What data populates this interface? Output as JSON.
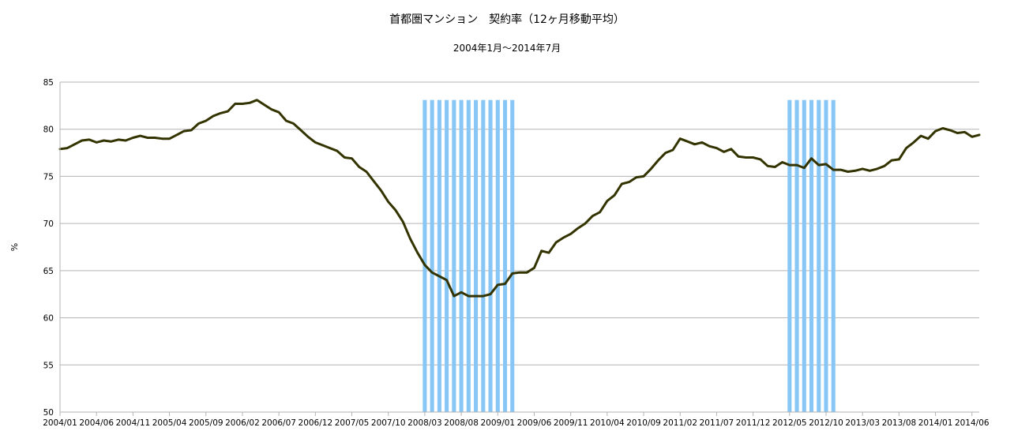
{
  "chart_data": {
    "type": "line",
    "title": "首都圏マンション　契約率（12ヶ月移動平均）",
    "subtitle": "2004年1月～2014年7月",
    "xlabel": "",
    "ylabel": "%",
    "ylim": [
      50,
      85
    ],
    "yticks": [
      50,
      55,
      60,
      65,
      70,
      75,
      80,
      85
    ],
    "grid": true,
    "legend": "none",
    "line_color": "#333300",
    "band_color": "#87c6f5",
    "x_tick_labels": [
      "2004/01",
      "2004/06",
      "2004/11",
      "2005/04",
      "2005/09",
      "2006/02",
      "2006/07",
      "2006/12",
      "2007/05",
      "2007/10",
      "2008/03",
      "2008/08",
      "2009/01",
      "2009/06",
      "2009/11",
      "2010/04",
      "2010/09",
      "2011/02",
      "2011/07",
      "2011/12",
      "2012/05",
      "2012/10",
      "2013/03",
      "2013/08",
      "2014/01",
      "2014/06"
    ],
    "shaded_periods": [
      {
        "start": "2008/03",
        "end": "2009/03",
        "value": 83.1
      },
      {
        "start": "2012/05",
        "end": "2012/11",
        "value": 83.1
      }
    ],
    "series": [
      {
        "start": "2004/01",
        "values": [
          77.9,
          78.0,
          78.4,
          78.8,
          78.9,
          78.6,
          78.8,
          78.7,
          78.9,
          78.8,
          79.1,
          79.3,
          79.1,
          79.1,
          79.0,
          79.0,
          79.4,
          79.8,
          79.9,
          80.6,
          80.9,
          81.4,
          81.7,
          81.9,
          82.7,
          82.7,
          82.8,
          83.1,
          82.6,
          82.1,
          81.8,
          80.9,
          80.6,
          79.9,
          79.2,
          78.6,
          78.3,
          78.0,
          77.7,
          77.0,
          76.9,
          76.0,
          75.5,
          74.5,
          73.5,
          72.3,
          71.4,
          70.2,
          68.4,
          66.9,
          65.6,
          64.8,
          64.4,
          64.0,
          62.3,
          62.7,
          62.3,
          62.3,
          62.3,
          62.5,
          63.5,
          63.6,
          64.7,
          64.8,
          64.8,
          65.3,
          67.1,
          66.9,
          68.0,
          68.5,
          68.9,
          69.5,
          70.0,
          70.8,
          71.2,
          72.4,
          73.0,
          74.2,
          74.4,
          74.9,
          75.0,
          75.8,
          76.7,
          77.5,
          77.8,
          79.0,
          78.7,
          78.4,
          78.6,
          78.2,
          78.0,
          77.6,
          77.9,
          77.1,
          77.0,
          77.0,
          76.8,
          76.1,
          76.0,
          76.5,
          76.2,
          76.2,
          75.9,
          76.9,
          76.2,
          76.3,
          75.7,
          75.7,
          75.5,
          75.6,
          75.8,
          75.6,
          75.8,
          76.1,
          76.7,
          76.8,
          78.0,
          78.6,
          79.3,
          79.0,
          79.8,
          80.1,
          79.9,
          79.6,
          79.7,
          79.2,
          79.4
        ]
      }
    ]
  }
}
